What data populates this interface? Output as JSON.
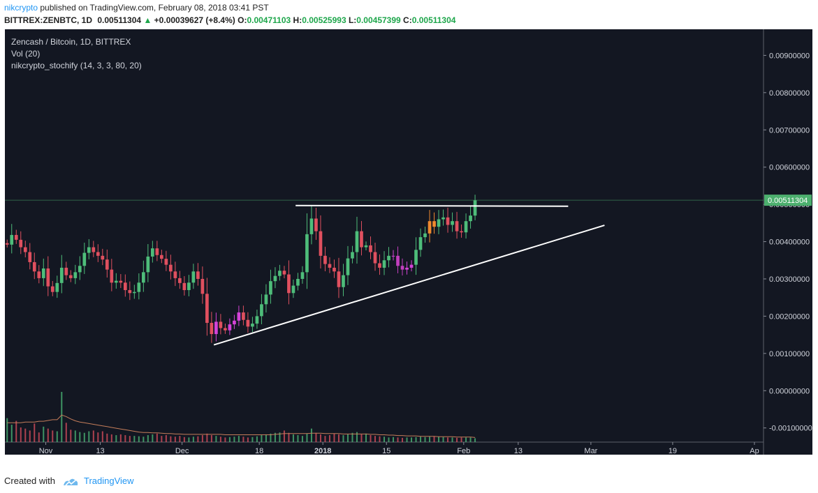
{
  "header": {
    "author": "nikcrypto",
    "published_text": " published on TradingView.com, February 08, 2018 03:41 PST",
    "symbol": "BITTREX:ZENBTC, 1D",
    "last": "0.00511304",
    "arrow": "▲",
    "change": "+0.00039627 (+8.4%)",
    "o_label": "O:",
    "o_value": "0.00471103",
    "h_label": "H:",
    "h_value": "0.00525993",
    "l_label": "L:",
    "l_value": "0.00457399",
    "c_label": "C:",
    "c_value": "0.00511304"
  },
  "legend": {
    "title": "Zencash / Bitcoin, 1D, BITTREX",
    "vol": "Vol (20)",
    "indicator": "nikcrypto_stochify (14, 3, 3, 80, 20)"
  },
  "footer": {
    "created_with": "Created with",
    "brand": "TradingView"
  },
  "colors": {
    "background": "#131722",
    "up": "#4ebd7a",
    "down": "#e0505f",
    "oversold": "#d443d8",
    "overbought": "#f08a2e",
    "trendline": "#ffffff",
    "price_tag": "#4caf6e",
    "volume_ma": "#c47d5a"
  },
  "chart_data": {
    "type": "candlestick",
    "price_axis": {
      "ticks": [
        0.009,
        0.008,
        0.007,
        0.006,
        0.005,
        0.004,
        0.003,
        0.002,
        0.001,
        0.0,
        -0.001
      ],
      "tick_labels": [
        "0.00900000",
        "0.00800000",
        "0.00700000",
        "0.00600000",
        "0.00500000",
        "0.00400000",
        "0.00300000",
        "0.00200000",
        "0.00100000",
        "0.00000000",
        "-0.00100000"
      ],
      "ylim": [
        -0.00138,
        0.0097
      ],
      "current_price": 0.00511304,
      "current_price_label": "0.00511304"
    },
    "time_axis": {
      "start": "2017-10-23",
      "end": "2018-04-08",
      "ticks": [
        {
          "date": "2017-11-01",
          "label": "Nov"
        },
        {
          "date": "2017-11-13",
          "label": "13"
        },
        {
          "date": "2017-12-01",
          "label": "Dec"
        },
        {
          "date": "2017-12-18",
          "label": "18"
        },
        {
          "date": "2018-01-01",
          "label": "2018"
        },
        {
          "date": "2018-01-15",
          "label": "15"
        },
        {
          "date": "2018-02-01",
          "label": "Feb"
        },
        {
          "date": "2018-02-13",
          "label": "13"
        },
        {
          "date": "2018-03-01",
          "label": "Mar"
        },
        {
          "date": "2018-03-19",
          "label": "19"
        },
        {
          "date": "2018-04-06",
          "label": "Ap"
        }
      ]
    },
    "close_series": [
      0.00392,
      0.00418,
      0.00405,
      0.00385,
      0.00372,
      0.00345,
      0.0032,
      0.00302,
      0.00328,
      0.0028,
      0.00265,
      0.00289,
      0.0033,
      0.0031,
      0.00302,
      0.00318,
      0.00335,
      0.0037,
      0.00385,
      0.00372,
      0.00362,
      0.00352,
      0.00325,
      0.0029,
      0.00295,
      0.0029,
      0.0027,
      0.00262,
      0.00265,
      0.0029,
      0.00318,
      0.0036,
      0.00382,
      0.00364,
      0.00354,
      0.00338,
      0.0032,
      0.00302,
      0.00289,
      0.0027,
      0.0029,
      0.0032,
      0.003,
      0.0026,
      0.00182,
      0.00152,
      0.00185,
      0.00168,
      0.00162,
      0.00178,
      0.00188,
      0.0021,
      0.0019,
      0.00172,
      0.0018,
      0.002,
      0.00232,
      0.00258,
      0.00294,
      0.00308,
      0.00322,
      0.00312,
      0.00262,
      0.00282,
      0.003,
      0.00318,
      0.0042,
      0.00462,
      0.00428,
      0.00362,
      0.0034,
      0.0033,
      0.0032,
      0.00278,
      0.0031,
      0.00355,
      0.00372,
      0.00428,
      0.00385,
      0.0039,
      0.00372,
      0.00342,
      0.0033,
      0.0035,
      0.00362,
      0.00362,
      0.00335,
      0.00325,
      0.0033,
      0.00338,
      0.00378,
      0.00412,
      0.00422,
      0.00455,
      0.0044,
      0.0046,
      0.00465,
      0.00445,
      0.00455,
      0.00428,
      0.00425,
      0.00455,
      0.0047,
      0.00511
    ],
    "volume_axis_note": "volume shown as bars at the bottom of the pane (no printed scale)",
    "volume_series": [
      62,
      45,
      55,
      38,
      35,
      30,
      48,
      25,
      40,
      35,
      30,
      28,
      130,
      50,
      32,
      30,
      26,
      24,
      28,
      30,
      25,
      28,
      22,
      20,
      18,
      20,
      18,
      16,
      16,
      15,
      14,
      18,
      20,
      22,
      16,
      18,
      15,
      14,
      16,
      13,
      12,
      14,
      15,
      18,
      22,
      18,
      16,
      14,
      12,
      13,
      14,
      16,
      14,
      12,
      13,
      15,
      18,
      20,
      22,
      24,
      25,
      30,
      24,
      20,
      18,
      16,
      22,
      35,
      24,
      20,
      16,
      18,
      22,
      20,
      18,
      20,
      24,
      26,
      20,
      22,
      18,
      16,
      15,
      14,
      12,
      13,
      12,
      11,
      12,
      12,
      13,
      14,
      13,
      14,
      15,
      14,
      13,
      12,
      12,
      11,
      12,
      12,
      12,
      10
    ],
    "volume_ma_series": [
      50,
      50,
      50,
      50,
      52,
      52,
      52,
      54,
      54,
      56,
      58,
      58,
      70,
      66,
      60,
      55,
      52,
      50,
      48,
      46,
      44,
      42,
      40,
      38,
      36,
      34,
      32,
      30,
      28,
      26,
      25,
      25,
      24,
      24,
      23,
      22,
      22,
      21,
      21,
      20,
      20,
      20,
      20,
      20,
      20,
      20,
      20,
      20,
      19,
      19,
      19,
      19,
      19,
      19,
      19,
      19,
      19,
      19,
      19,
      20,
      21,
      22,
      22,
      22,
      22,
      22,
      22,
      23,
      23,
      23,
      22,
      22,
      22,
      22,
      21,
      21,
      21,
      21,
      21,
      21,
      20,
      20,
      19,
      19,
      18,
      18,
      17,
      17,
      16,
      16,
      16,
      15,
      15,
      15,
      15,
      14,
      14,
      14,
      14,
      13,
      13,
      13,
      13,
      12
    ],
    "annotations": [
      {
        "type": "resistance",
        "from": {
          "date": "2017-12-26",
          "price": 0.00497
        },
        "to": {
          "date": "2018-02-24",
          "price": 0.00495
        }
      },
      {
        "type": "support",
        "from": {
          "date": "2017-12-08",
          "price": 0.00123
        },
        "to": {
          "date": "2018-03-04",
          "price": 0.00444
        }
      }
    ]
  }
}
